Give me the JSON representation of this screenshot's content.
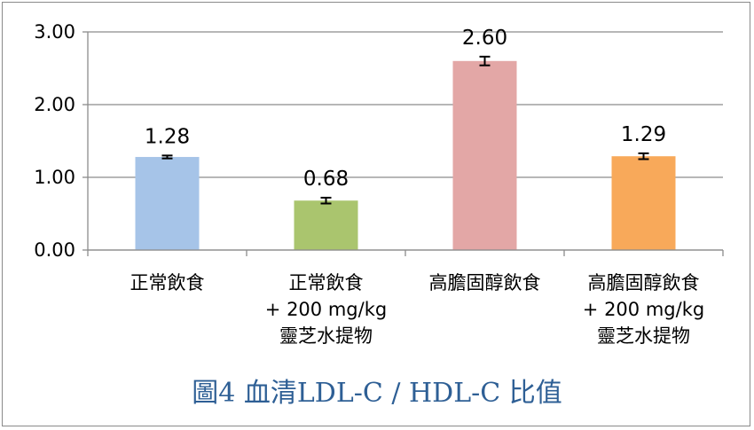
{
  "chart_data": {
    "type": "bar",
    "title": "圖4  血清LDL-C / HDL-C 比值",
    "categories": [
      [
        "正常飲食"
      ],
      [
        "正常飲食",
        "+ 200 mg/kg",
        "靈芝水提物"
      ],
      [
        "高膽固醇飲食"
      ],
      [
        "高膽固醇飲食",
        "+ 200 mg/kg",
        "靈芝水提物"
      ]
    ],
    "values": [
      1.28,
      0.68,
      2.6,
      1.29
    ],
    "value_labels": [
      "1.28",
      "0.68",
      "2.60",
      "1.29"
    ],
    "error": [
      0.02,
      0.04,
      0.06,
      0.04
    ],
    "colors": [
      "#a6c4e8",
      "#aac56e",
      "#e3a7a6",
      "#f8a95a"
    ],
    "ylim": [
      0,
      3
    ],
    "yticks": [
      0,
      1,
      2,
      3
    ],
    "ytick_labels": [
      "0.00",
      "1.00",
      "2.00",
      "3.00"
    ],
    "grid": true,
    "xlabel": "",
    "ylabel": ""
  }
}
